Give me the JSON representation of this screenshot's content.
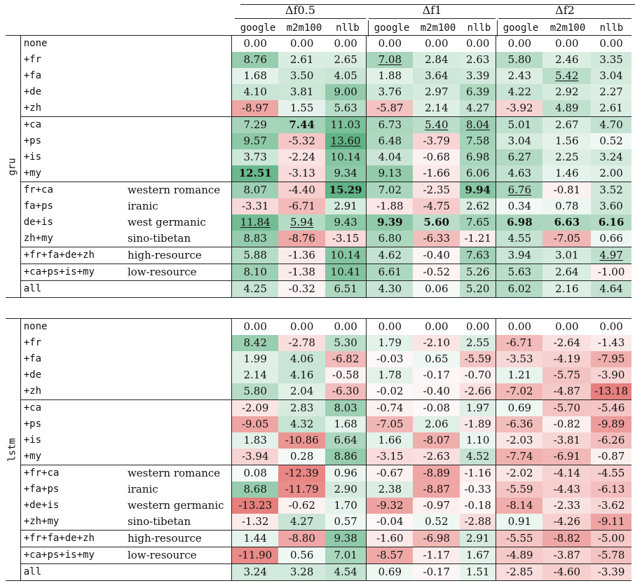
{
  "header": {
    "groups": [
      "Δf0.5",
      "Δf1",
      "Δf2"
    ],
    "systems": [
      "google",
      "m2m100",
      "nllb"
    ]
  },
  "colors": {
    "positive": "#4aa874",
    "negative": "#e06a66"
  },
  "sections": [
    {
      "model": "gru",
      "groups": [
        [
          {
            "name": "none",
            "family": "",
            "values": [
              0.0,
              0.0,
              0.0,
              0.0,
              0.0,
              0.0,
              0.0,
              0.0,
              0.0
            ]
          },
          {
            "name": "+fr",
            "family": "",
            "values": [
              8.76,
              2.61,
              2.65,
              7.08,
              2.84,
              2.63,
              5.8,
              2.46,
              3.35
            ],
            "underline": [
              3
            ]
          },
          {
            "name": "+fa",
            "family": "",
            "values": [
              1.68,
              3.5,
              4.05,
              1.88,
              3.64,
              3.39,
              2.43,
              5.42,
              3.04
            ],
            "underline": [
              7
            ]
          },
          {
            "name": "+de",
            "family": "",
            "values": [
              4.1,
              3.81,
              9.0,
              3.76,
              2.97,
              6.39,
              4.22,
              2.92,
              2.27
            ]
          },
          {
            "name": "+zh",
            "family": "",
            "values": [
              -8.97,
              1.55,
              5.63,
              -5.87,
              2.14,
              4.27,
              -3.92,
              4.89,
              2.61
            ]
          }
        ],
        [
          {
            "name": "+ca",
            "family": "",
            "values": [
              7.29,
              7.44,
              11.03,
              6.73,
              5.4,
              8.04,
              5.01,
              2.67,
              4.7
            ],
            "bold": [
              1
            ],
            "underline": [
              4,
              5
            ]
          },
          {
            "name": "+ps",
            "family": "",
            "values": [
              9.57,
              -5.32,
              13.6,
              6.48,
              -3.79,
              7.58,
              3.04,
              1.56,
              0.52
            ],
            "underline": [
              2
            ]
          },
          {
            "name": "+is",
            "family": "",
            "values": [
              3.73,
              -2.24,
              10.14,
              4.04,
              -0.68,
              6.98,
              6.27,
              2.25,
              3.24
            ]
          },
          {
            "name": "+my",
            "family": "",
            "values": [
              12.51,
              -3.13,
              9.34,
              9.13,
              -1.66,
              6.06,
              4.63,
              1.46,
              2.0
            ],
            "bold": [
              0
            ]
          }
        ],
        [
          {
            "name": "fr+ca",
            "family": "western romance",
            "values": [
              8.07,
              -4.4,
              15.29,
              7.02,
              -2.35,
              9.94,
              6.76,
              -0.81,
              3.52
            ],
            "bold": [
              2,
              5
            ],
            "underline": [
              6
            ]
          },
          {
            "name": "fa+ps",
            "family": "iranic",
            "values": [
              -3.31,
              -6.71,
              2.91,
              -1.88,
              -4.75,
              2.62,
              0.34,
              0.78,
              3.6
            ]
          },
          {
            "name": "de+is",
            "family": "west germanic",
            "values": [
              11.84,
              5.94,
              9.43,
              9.39,
              5.6,
              7.65,
              6.98,
              6.63,
              6.16
            ],
            "bold": [
              3,
              4,
              6,
              7,
              8
            ],
            "underline": [
              0,
              1
            ]
          },
          {
            "name": "zh+my",
            "family": "sino-tibetan",
            "values": [
              8.83,
              -8.76,
              -3.15,
              6.8,
              -6.33,
              -1.21,
              4.55,
              -7.05,
              0.66
            ]
          }
        ],
        [
          {
            "name": "+fr+fa+de+zh",
            "family": "high-resource",
            "values": [
              5.88,
              -1.36,
              10.14,
              4.62,
              -0.4,
              7.63,
              3.94,
              3.01,
              4.97
            ],
            "underline": [
              8
            ]
          }
        ],
        [
          {
            "name": "+ca+ps+is+my",
            "family": "low-resource",
            "values": [
              8.1,
              -1.38,
              10.41,
              6.61,
              -0.52,
              5.26,
              5.63,
              2.64,
              -1.0
            ]
          }
        ],
        [
          {
            "name": "all",
            "family": "",
            "values": [
              4.25,
              -0.32,
              6.51,
              4.3,
              0.06,
              5.2,
              6.02,
              2.16,
              4.64
            ]
          }
        ]
      ]
    },
    {
      "model": "lstm",
      "groups": [
        [
          {
            "name": "none",
            "family": "",
            "values": [
              0.0,
              0.0,
              0.0,
              0.0,
              0.0,
              0.0,
              0.0,
              0.0,
              0.0
            ]
          },
          {
            "name": "+fr",
            "family": "",
            "values": [
              8.42,
              -2.78,
              5.3,
              1.79,
              -2.1,
              2.55,
              -6.71,
              -2.64,
              -1.43
            ]
          },
          {
            "name": "+fa",
            "family": "",
            "values": [
              1.99,
              4.06,
              -6.82,
              -0.03,
              0.65,
              -5.59,
              -3.53,
              -4.19,
              -7.95
            ]
          },
          {
            "name": "+de",
            "family": "",
            "values": [
              2.14,
              4.16,
              -0.58,
              1.78,
              -0.17,
              -0.7,
              1.21,
              -5.75,
              -3.9
            ]
          },
          {
            "name": "+zh",
            "family": "",
            "values": [
              5.8,
              2.04,
              -6.3,
              -0.02,
              -0.4,
              -2.66,
              -7.02,
              -4.87,
              -13.18
            ]
          }
        ],
        [
          {
            "name": "+ca",
            "family": "",
            "values": [
              -2.09,
              2.83,
              8.03,
              -0.74,
              -0.08,
              1.97,
              0.69,
              -5.7,
              -5.46
            ]
          },
          {
            "name": "+ps",
            "family": "",
            "values": [
              -9.05,
              4.32,
              1.68,
              -7.05,
              2.06,
              -1.89,
              -6.36,
              -0.82,
              -9.89
            ]
          },
          {
            "name": "+is",
            "family": "",
            "values": [
              1.83,
              -10.86,
              6.64,
              1.66,
              -8.07,
              1.1,
              -2.03,
              -3.81,
              -6.26
            ]
          },
          {
            "name": "+my",
            "family": "",
            "values": [
              -3.94,
              0.28,
              8.86,
              -3.15,
              -2.63,
              4.52,
              -7.74,
              -6.91,
              -0.87
            ]
          }
        ],
        [
          {
            "name": "+fr+ca",
            "family": "western romance",
            "values": [
              0.08,
              -12.39,
              0.96,
              -0.67,
              -8.89,
              -1.16,
              -2.02,
              -4.14,
              -4.55
            ]
          },
          {
            "name": "+fa+ps",
            "family": "iranic",
            "values": [
              8.68,
              -11.79,
              2.9,
              2.38,
              -8.87,
              -0.33,
              -5.59,
              -4.43,
              -6.13
            ]
          },
          {
            "name": "+de+is",
            "family": "western germanic",
            "values": [
              -13.23,
              -0.62,
              1.7,
              -9.32,
              -0.97,
              -0.18,
              -8.14,
              -2.33,
              -3.62
            ]
          },
          {
            "name": "+zh+my",
            "family": "sino-tibetan",
            "values": [
              -1.32,
              4.27,
              0.57,
              -0.04,
              0.52,
              -2.88,
              0.91,
              -4.26,
              -9.11
            ]
          }
        ],
        [
          {
            "name": "+fr+fa+de+zh",
            "family": "high-resource",
            "values": [
              1.44,
              -8.8,
              9.38,
              -1.6,
              -6.98,
              2.91,
              -5.55,
              -8.82,
              -5.0
            ]
          }
        ],
        [
          {
            "name": "+ca+ps+is+my",
            "family": "low-resource",
            "values": [
              -11.9,
              0.56,
              7.01,
              -8.57,
              -1.17,
              1.67,
              -4.89,
              -3.87,
              -5.78
            ]
          }
        ],
        [
          {
            "name": "all",
            "family": "",
            "values": [
              3.24,
              3.28,
              4.54,
              0.69,
              -0.17,
              1.51,
              -2.85,
              -4.6,
              -3.39
            ]
          }
        ]
      ]
    }
  ]
}
